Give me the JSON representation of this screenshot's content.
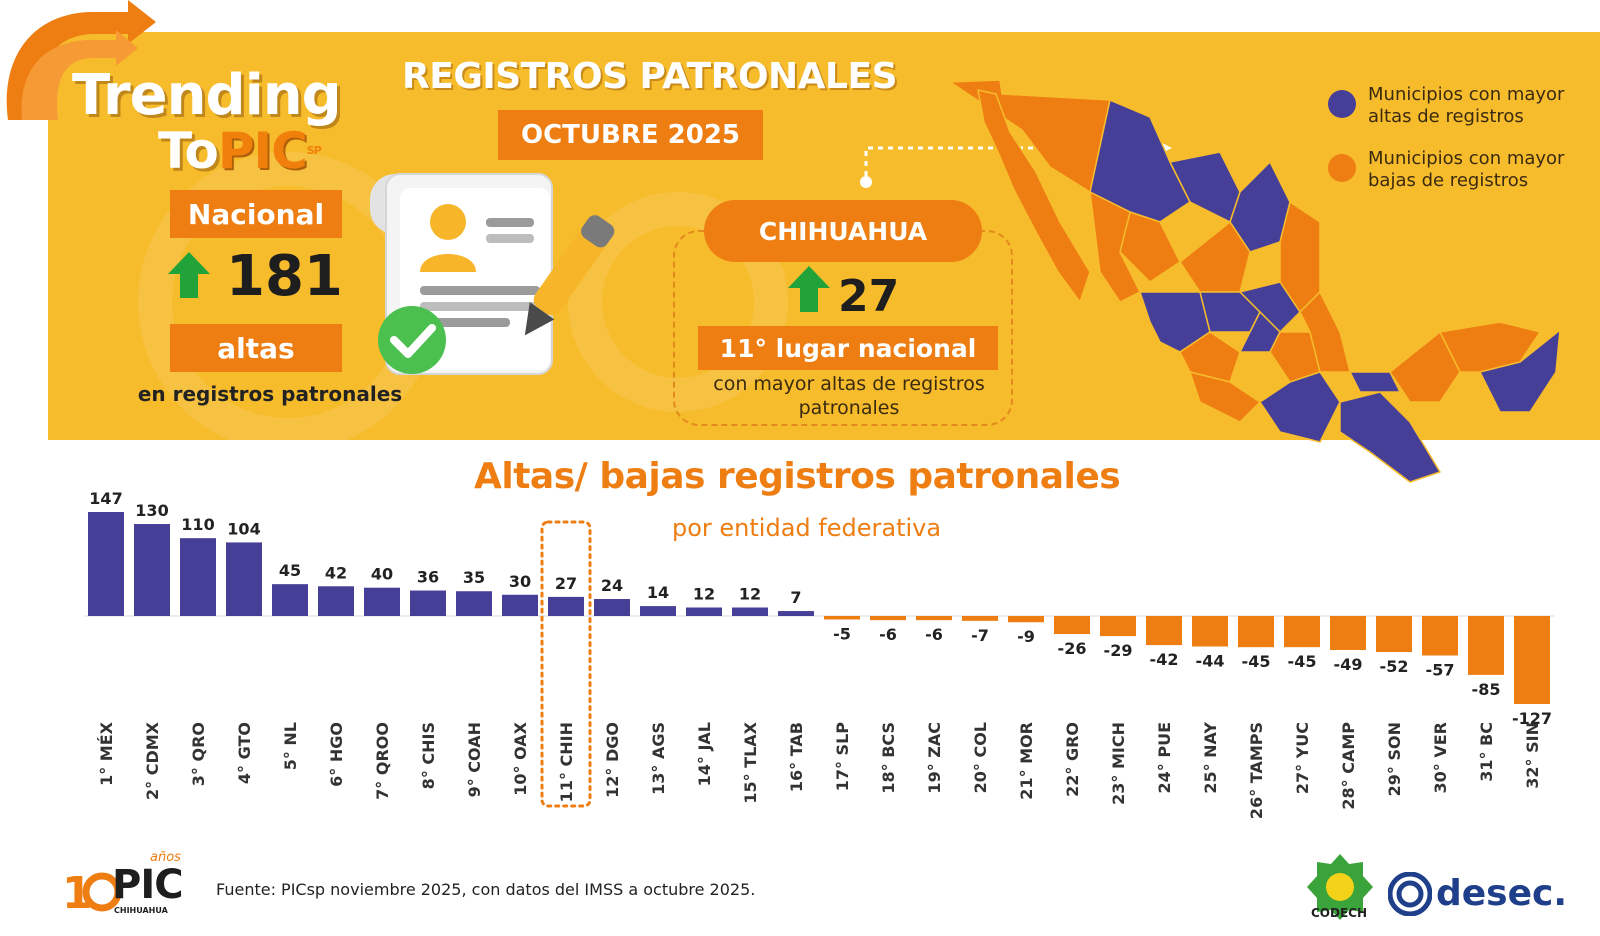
{
  "banner": {
    "brand_line1": "Trending",
    "brand_line2_a": "To",
    "brand_line2_b": "PIC",
    "brand_sp": "SP",
    "main_title": "REGISTROS PATRONALES",
    "period": "OCTUBRE 2025",
    "national": {
      "label": "Nacional",
      "value": "181",
      "unit": "altas",
      "description": "en registros patronales"
    },
    "chihuahua": {
      "label": "CHIHUAHUA",
      "value": "27",
      "rank": "11° lugar nacional",
      "description": "con mayor altas de registros patronales"
    },
    "legend": [
      {
        "label": "Municipios con mayor altas de registros",
        "color": "#463f98"
      },
      {
        "label": "Municipios con mayor bajas de registros",
        "color": "#ee7d12"
      }
    ]
  },
  "chart_data": {
    "type": "bar",
    "title": "Altas/ bajas registros patronales",
    "subtitle": "por entidad federativa",
    "categories": [
      "1° MÉX",
      "2° CDMX",
      "3° QRO",
      "4° GTO",
      "5° NL",
      "6° HGO",
      "7° QROO",
      "8° CHIS",
      "9° COAH",
      "10° OAX",
      "11° CHIH",
      "12° DGO",
      "13° AGS",
      "14° JAL",
      "15° TLAX",
      "16° TAB",
      "17° SLP",
      "18° BCS",
      "19° ZAC",
      "20° COL",
      "21° MOR",
      "22° GRO",
      "23° MICH",
      "24° PUE",
      "25° NAY",
      "26° TAMPS",
      "27° YUC",
      "28° CAMP",
      "29° SON",
      "30° VER",
      "31° BC",
      "32° SIN"
    ],
    "values": [
      147,
      130,
      110,
      104,
      45,
      42,
      40,
      36,
      35,
      30,
      27,
      24,
      14,
      12,
      12,
      7,
      -5,
      -6,
      -6,
      -7,
      -9,
      -26,
      -29,
      -42,
      -44,
      -45,
      -45,
      -49,
      -52,
      -57,
      -85,
      -127
    ],
    "highlight_index": 10,
    "positive_color": "#463f98",
    "negative_color": "#ee7d12",
    "ylim": [
      -127,
      147
    ]
  },
  "footer": {
    "logo_years": "años",
    "logo_text": "PIC",
    "logo_sub": "CHIHUAHUA",
    "source": "Fuente:  PICsp noviembre 2025, con datos del IMSS a octubre 2025.",
    "codech": "CODECH",
    "desec": "desec."
  }
}
